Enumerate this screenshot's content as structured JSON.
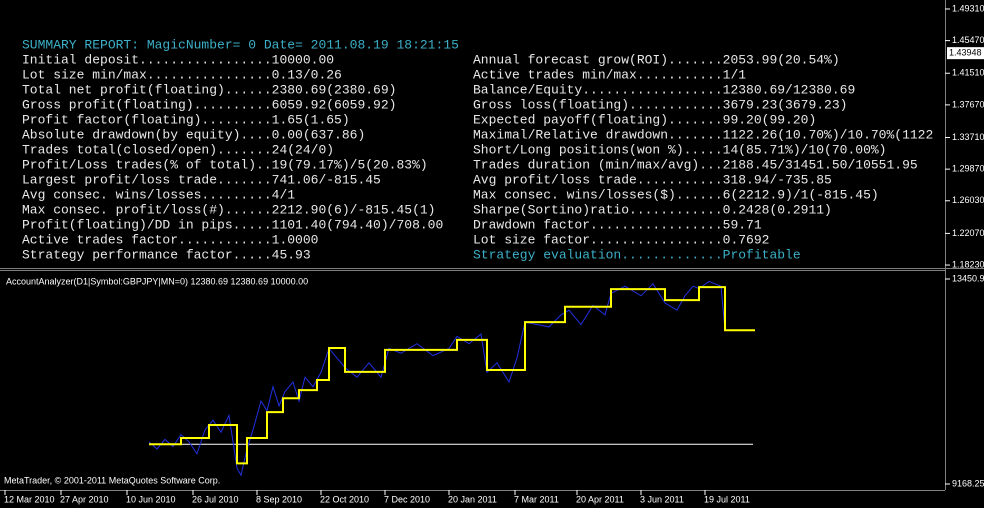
{
  "report": {
    "header": "SUMMARY REPORT: MagicNumber= 0 Date= 2011.08.19 18:21:15",
    "left": [
      "Initial deposit.................10000.00",
      "Lot size min/max................0.13/0.26",
      "Total net profit(floating)......2380.69(2380.69)",
      "Gross profit(floating)..........6059.92(6059.92)",
      "Profit factor(floating).........1.65(1.65)",
      "Absolute drawdown(by equity)....0.00(637.86)",
      "Trades total(closed/open).......24(24/0)",
      "Profit/Loss trades(% of total)..19(79.17%)/5(20.83%)",
      "Largest profit/loss trade.......741.06/-815.45",
      "Avg consec. wins/losses.........4/1",
      "Max consec. profit/loss(#)......2212.90(6)/-815.45(1)",
      "Profit(floating)/DD in pips.....1101.40(794.40)/708.00",
      "Active trades factor............1.0000",
      "Strategy performance factor.....45.93"
    ],
    "right": [
      "Annual forecast grow(ROI).......2053.99(20.54%)",
      "Active trades min/max...........1/1",
      "Balance/Equity..................12380.69/12380.69",
      "Gross loss(floating)............3679.23(3679.23)",
      "Expected payoff(floating).......99.20(99.20)",
      "Maximal/Relative drawdown.......1122.26(10.70%)/10.70%(1122",
      "Short/Long positions(won %).....14(85.71%)/10(70.00%)",
      "Trades duration (min/max/avg)...2188.45/31451.50/10551.95",
      "Avg profit/loss trade...........318.94/-735.85",
      "Max consec. wins/losses($)......6(2212.9)/1(-815.45)",
      "Sharpe(Sortino)ratio............0.2428(0.2911)",
      "Drawdown factor.................59.71",
      "Lot size factor.................0.7692",
      "Strategy evaluation.............Profitable"
    ]
  },
  "price_axis": {
    "ylim": [
      1.1787,
      1.504
    ],
    "yticks": [
      {
        "value": 1.4931,
        "label": "1.49310"
      },
      {
        "value": 1.4547,
        "label": "1.45470"
      },
      {
        "value": 1.4151,
        "label": "1.41510"
      },
      {
        "value": 1.3767,
        "label": "1.37670"
      },
      {
        "value": 1.3371,
        "label": "1.33710"
      },
      {
        "value": 1.2987,
        "label": "1.29870"
      },
      {
        "value": 1.2603,
        "label": "1.26030"
      },
      {
        "value": 1.2207,
        "label": "1.22070"
      },
      {
        "value": 1.1823,
        "label": "1.18230"
      }
    ],
    "current": 1.43948
  },
  "chart_data": {
    "type": "line",
    "legend_text": "AccountAnalyzer(D1|Symbol:GBPJPY|MN=0) 12380.69 12380.69 10000.00",
    "footer": "MetaTrader, © 2001-2011 MetaQuotes Software Corp.",
    "xlim": [
      -2.5,
      470
    ],
    "xticks": [
      {
        "value": 0,
        "label": "12 Mar 2010"
      },
      {
        "value": 28,
        "label": "27 Apr 2010"
      },
      {
        "value": 61,
        "label": "10 Jun 2010"
      },
      {
        "value": 94,
        "label": "26 Jul 2010"
      },
      {
        "value": 126,
        "label": "8 Sep 2010"
      },
      {
        "value": 158,
        "label": "22 Oct 2010"
      },
      {
        "value": 190,
        "label": "7 Dec 2010"
      },
      {
        "value": 222,
        "label": "20 Jan 2011"
      },
      {
        "value": 255,
        "label": "7 Mar 2011"
      },
      {
        "value": 286,
        "label": "20 Apr 2011"
      },
      {
        "value": 318,
        "label": "3 Jun 2011"
      },
      {
        "value": 350,
        "label": "19 Jul 2011"
      }
    ],
    "ylim": [
      9043,
      13618
    ],
    "yticks": [
      {
        "value": 13450.9,
        "label": "13450.90"
      },
      9168.25
    ],
    "series": [
      {
        "color": "#ffffff",
        "x": [
          72,
          374
        ],
        "values": [
          10000,
          10000
        ]
      },
      {
        "color": "#2030e0",
        "x": [
          72,
          76,
          80,
          84,
          88,
          92,
          96,
          100,
          104,
          108,
          112,
          116,
          118,
          121,
          124,
          128,
          131,
          134,
          137,
          140,
          144,
          147,
          150,
          154,
          158,
          162,
          166,
          170,
          176,
          182,
          188,
          192,
          198,
          206,
          214,
          222,
          226,
          232,
          238,
          241,
          246,
          252,
          256,
          260,
          266,
          272,
          278,
          282,
          288,
          294,
          300,
          303,
          310,
          318,
          324,
          330,
          336,
          340,
          344,
          347,
          352,
          358,
          360,
          375
        ],
        "values": [
          10050,
          9900,
          10100,
          9950,
          10200,
          10050,
          9800,
          10300,
          10500,
          10250,
          10600,
          9500,
          9350,
          9900,
          10300,
          10900,
          10700,
          11200,
          10800,
          11100,
          11300,
          10900,
          11400,
          11200,
          11500,
          12000,
          11800,
          11600,
          11400,
          11700,
          11400,
          12000,
          11900,
          12100,
          11850,
          12000,
          12250,
          12100,
          12300,
          11500,
          11700,
          11300,
          11800,
          12550,
          12500,
          12450,
          12700,
          12800,
          12500,
          12900,
          12700,
          13150,
          13300,
          13100,
          13350,
          12950,
          12800,
          13100,
          13300,
          13250,
          13400,
          13300,
          12380.69,
          12380.69
        ]
      },
      {
        "color": "#ffff00",
        "x": [
          72,
          88,
          88,
          102,
          102,
          116,
          116,
          121,
          121,
          131,
          131,
          139,
          139,
          147,
          147,
          156,
          156,
          162,
          162,
          170,
          170,
          190,
          190,
          226,
          226,
          241,
          241,
          260,
          260,
          280,
          280,
          303,
          303,
          330,
          330,
          347,
          347,
          360,
          360,
          375
        ],
        "values": [
          10000,
          10000,
          10130,
          10130,
          10400,
          10400,
          9600,
          9600,
          10130,
          10130,
          10670,
          10670,
          10960,
          10960,
          11130,
          11130,
          11340,
          11340,
          12010,
          12010,
          11510,
          11510,
          11970,
          11970,
          12180,
          12180,
          11550,
          11550,
          12550,
          12550,
          12870,
          12870,
          13240,
          13240,
          13010,
          13010,
          13280,
          13280,
          12380.69,
          12380.69
        ]
      }
    ]
  }
}
